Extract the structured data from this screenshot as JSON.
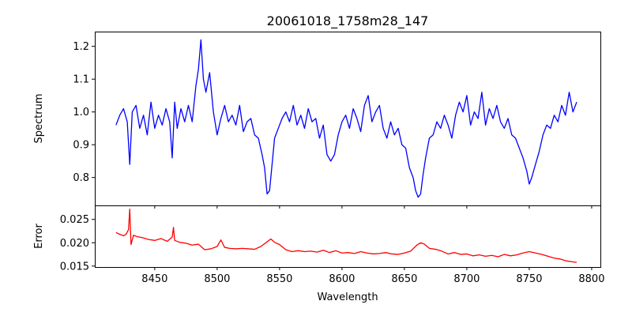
{
  "figure": {
    "title": "20061018_1758m28_147"
  },
  "chart_data": [
    {
      "type": "line",
      "panel": "top",
      "title": "20061018_1758m28_147",
      "xlabel": "",
      "ylabel": "Spectrum",
      "xlim": [
        8402,
        8807
      ],
      "ylim": [
        0.715,
        1.245
      ],
      "yticks": [
        0.8,
        0.9,
        1.0,
        1.1,
        1.2
      ],
      "ytick_labels": [
        "0.8",
        "0.9",
        "1.0",
        "1.1",
        "1.2"
      ],
      "grid": false,
      "series": [
        {
          "color": "#0000ff",
          "x": [
            8419,
            8422,
            8425,
            8428,
            8430,
            8432,
            8435,
            8438,
            8441,
            8444,
            8447,
            8450,
            8453,
            8456,
            8459,
            8462,
            8464,
            8466,
            8468,
            8471,
            8474,
            8477,
            8480,
            8483,
            8485,
            8487,
            8489,
            8491,
            8494,
            8497,
            8500,
            8503,
            8506,
            8509,
            8512,
            8515,
            8518,
            8521,
            8524,
            8527,
            8530,
            8533,
            8536,
            8538,
            8540,
            8542,
            8544,
            8546,
            8549,
            8552,
            8555,
            8558,
            8561,
            8564,
            8567,
            8570,
            8573,
            8576,
            8579,
            8582,
            8585,
            8588,
            8591,
            8594,
            8597,
            8600,
            8603,
            8606,
            8609,
            8612,
            8615,
            8618,
            8621,
            8624,
            8627,
            8630,
            8633,
            8636,
            8639,
            8642,
            8645,
            8648,
            8651,
            8654,
            8657,
            8659,
            8661,
            8663,
            8665,
            8667,
            8670,
            8673,
            8676,
            8679,
            8682,
            8685,
            8688,
            8691,
            8694,
            8697,
            8700,
            8703,
            8706,
            8709,
            8712,
            8715,
            8718,
            8721,
            8724,
            8727,
            8730,
            8733,
            8736,
            8739,
            8742,
            8745,
            8748,
            8750,
            8752,
            8755,
            8758,
            8761,
            8764,
            8767,
            8770,
            8773,
            8776,
            8779,
            8782,
            8785,
            8788
          ],
          "y": [
            0.96,
            0.99,
            1.01,
            0.97,
            0.84,
            1.0,
            1.02,
            0.95,
            0.99,
            0.93,
            1.03,
            0.95,
            0.99,
            0.96,
            1.01,
            0.97,
            0.86,
            1.03,
            0.95,
            1.01,
            0.97,
            1.02,
            0.97,
            1.08,
            1.13,
            1.22,
            1.1,
            1.06,
            1.12,
            1.0,
            0.93,
            0.98,
            1.02,
            0.97,
            0.99,
            0.96,
            1.02,
            0.94,
            0.97,
            0.98,
            0.93,
            0.92,
            0.87,
            0.83,
            0.75,
            0.76,
            0.84,
            0.92,
            0.95,
            0.98,
            1.0,
            0.97,
            1.02,
            0.96,
            0.99,
            0.95,
            1.01,
            0.97,
            0.98,
            0.92,
            0.96,
            0.87,
            0.85,
            0.87,
            0.93,
            0.97,
            0.99,
            0.95,
            1.01,
            0.98,
            0.94,
            1.02,
            1.05,
            0.97,
            1.0,
            1.02,
            0.95,
            0.92,
            0.97,
            0.93,
            0.95,
            0.9,
            0.89,
            0.83,
            0.8,
            0.76,
            0.74,
            0.75,
            0.81,
            0.86,
            0.92,
            0.93,
            0.97,
            0.95,
            0.99,
            0.96,
            0.92,
            0.99,
            1.03,
            1.0,
            1.05,
            0.96,
            1.0,
            0.98,
            1.06,
            0.96,
            1.01,
            0.98,
            1.02,
            0.97,
            0.95,
            0.98,
            0.93,
            0.92,
            0.89,
            0.86,
            0.82,
            0.78,
            0.8,
            0.84,
            0.88,
            0.93,
            0.96,
            0.95,
            0.99,
            0.97,
            1.02,
            0.99,
            1.06,
            1.0,
            1.03
          ]
        }
      ]
    },
    {
      "type": "line",
      "panel": "bottom",
      "xlabel": "Wavelength",
      "ylabel": "Error",
      "xlim": [
        8402,
        8807
      ],
      "ylim": [
        0.0148,
        0.028
      ],
      "xticks": [
        8450,
        8500,
        8550,
        8600,
        8650,
        8700,
        8750,
        8800
      ],
      "xtick_labels": [
        "8450",
        "8500",
        "8550",
        "8600",
        "8650",
        "8700",
        "8750",
        "8800"
      ],
      "yticks": [
        0.015,
        0.02,
        0.025
      ],
      "ytick_labels": [
        "0.015",
        "0.020",
        "0.025"
      ],
      "grid": false,
      "series": [
        {
          "color": "#ff0000",
          "x": [
            8419,
            8422,
            8425,
            8427,
            8429,
            8430,
            8431,
            8433,
            8436,
            8440,
            8445,
            8450,
            8455,
            8460,
            8464,
            8465,
            8466,
            8470,
            8475,
            8480,
            8485,
            8490,
            8495,
            8500,
            8503,
            8506,
            8510,
            8515,
            8520,
            8525,
            8530,
            8535,
            8540,
            8543,
            8546,
            8550,
            8555,
            8560,
            8565,
            8570,
            8575,
            8580,
            8585,
            8590,
            8595,
            8600,
            8605,
            8610,
            8615,
            8620,
            8625,
            8630,
            8635,
            8640,
            8645,
            8650,
            8655,
            8660,
            8663,
            8666,
            8670,
            8675,
            8680,
            8685,
            8690,
            8695,
            8700,
            8705,
            8710,
            8715,
            8720,
            8725,
            8730,
            8735,
            8740,
            8745,
            8750,
            8755,
            8760,
            8765,
            8770,
            8775,
            8780,
            8785,
            8788
          ],
          "y": [
            0.0222,
            0.0218,
            0.0215,
            0.0218,
            0.0228,
            0.0272,
            0.0196,
            0.0216,
            0.0213,
            0.0211,
            0.0207,
            0.0205,
            0.0209,
            0.0203,
            0.0212,
            0.0233,
            0.0205,
            0.0201,
            0.0199,
            0.0195,
            0.0197,
            0.0185,
            0.0187,
            0.0192,
            0.0206,
            0.019,
            0.0188,
            0.0187,
            0.0188,
            0.0187,
            0.0186,
            0.0192,
            0.0202,
            0.0208,
            0.0201,
            0.0196,
            0.0185,
            0.0181,
            0.0183,
            0.0181,
            0.0182,
            0.018,
            0.0184,
            0.0179,
            0.0183,
            0.0178,
            0.0179,
            0.0177,
            0.0181,
            0.0178,
            0.0176,
            0.0177,
            0.0179,
            0.0176,
            0.0175,
            0.0178,
            0.0182,
            0.0195,
            0.02,
            0.0197,
            0.0188,
            0.0186,
            0.0182,
            0.0176,
            0.0179,
            0.0175,
            0.0176,
            0.0172,
            0.0174,
            0.0171,
            0.0173,
            0.017,
            0.0175,
            0.0172,
            0.0174,
            0.0178,
            0.0181,
            0.0178,
            0.0175,
            0.0171,
            0.0167,
            0.0165,
            0.0161,
            0.0159,
            0.0158
          ]
        }
      ]
    }
  ]
}
